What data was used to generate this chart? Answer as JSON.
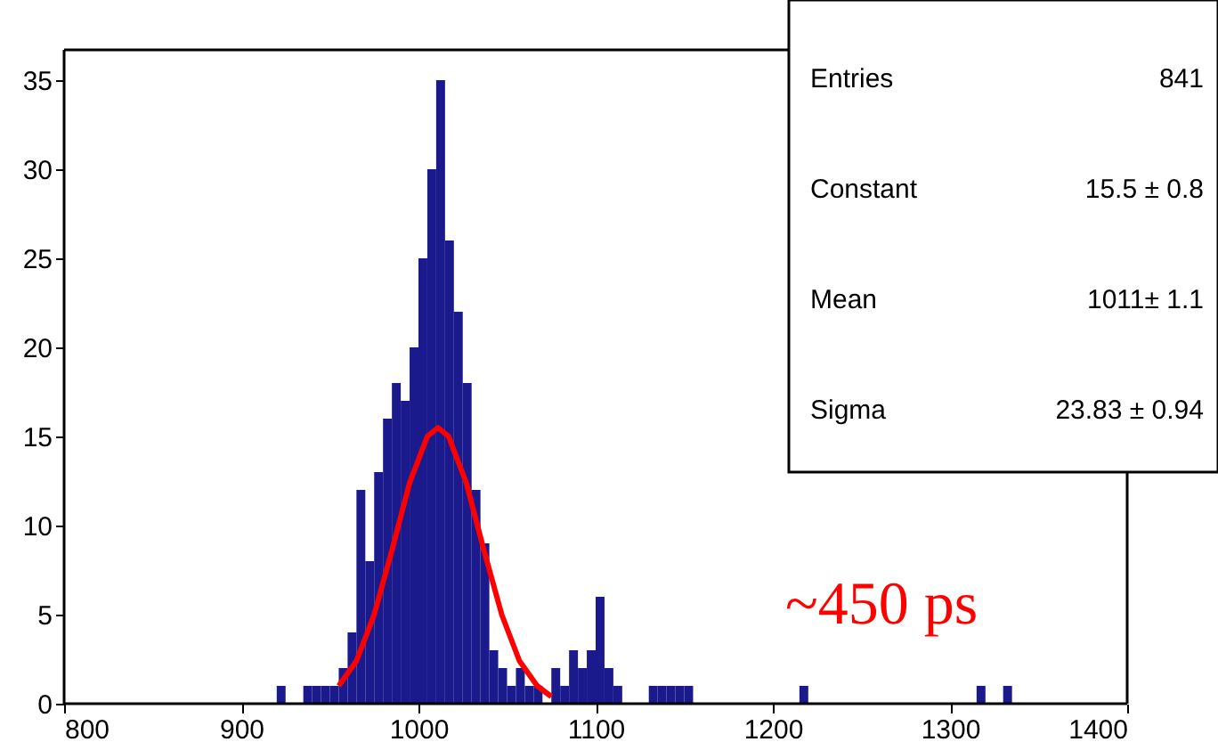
{
  "chart_data": {
    "type": "histogram",
    "bins": [
      915,
      920,
      925,
      930,
      935,
      940,
      945,
      950,
      955,
      960,
      965,
      970,
      975,
      980,
      985,
      990,
      995,
      1000,
      1005,
      1010,
      1015,
      1020,
      1025,
      1030,
      1035,
      1040,
      1045,
      1050,
      1055,
      1060,
      1065,
      1070,
      1075,
      1080,
      1085,
      1090,
      1095,
      1100,
      1105,
      1110,
      1115,
      1120,
      1125,
      1130,
      1135,
      1140,
      1145,
      1150,
      1155,
      1160,
      1165,
      1170,
      1175,
      1180,
      1185,
      1190,
      1195,
      1200,
      1205,
      1210,
      1215,
      1220,
      1225,
      1230,
      1235,
      1240,
      1245,
      1250,
      1255,
      1260,
      1265,
      1270,
      1275,
      1280,
      1285,
      1290,
      1295,
      1300,
      1305,
      1310,
      1315,
      1320,
      1325,
      1330,
      1335,
      1340
    ],
    "values": [
      0,
      1,
      0,
      0,
      1,
      1,
      1,
      1,
      2,
      4,
      12,
      8,
      13,
      16,
      18,
      17,
      20,
      25,
      30,
      35,
      26,
      22,
      18,
      12,
      9,
      3,
      2,
      1,
      2,
      1,
      1,
      0,
      2,
      1,
      3,
      2,
      3,
      6,
      2,
      1,
      0,
      0,
      0,
      1,
      1,
      1,
      1,
      1,
      0,
      0,
      0,
      0,
      0,
      0,
      0,
      0,
      0,
      0,
      0,
      0,
      1,
      0,
      0,
      0,
      0,
      0,
      0,
      0,
      0,
      0,
      0,
      0,
      0,
      0,
      0,
      0,
      0,
      0,
      0,
      0,
      1,
      0,
      0,
      1,
      0
    ],
    "color": "#1a1a8c",
    "series": [
      {
        "type": "line",
        "color": "#ff0000",
        "x": [
          955,
          965,
          975,
          985,
          995,
          1005,
          1011,
          1017,
          1027,
          1037,
          1047,
          1057,
          1067,
          1075
        ],
        "values": [
          1.0,
          2.4,
          5.0,
          8.6,
          12.4,
          15.0,
          15.5,
          15.0,
          12.4,
          8.6,
          5.0,
          2.4,
          1.0,
          0.4
        ]
      }
    ],
    "xlim": [
      800,
      1400
    ],
    "xticks": [
      800,
      900,
      1000,
      1100,
      1200,
      1300,
      1400
    ],
    "ylim": [
      0,
      36.7
    ],
    "yticks": [
      0,
      5,
      10,
      15,
      20,
      25,
      30,
      35
    ],
    "grid": false,
    "annotations": [
      "Entries",
      "841",
      "Constant",
      "15.5 ± 0.8",
      "Mean",
      "1011± 1.1",
      "Sigma",
      "23.83 ± 0.94",
      "~450 ps"
    ]
  }
}
